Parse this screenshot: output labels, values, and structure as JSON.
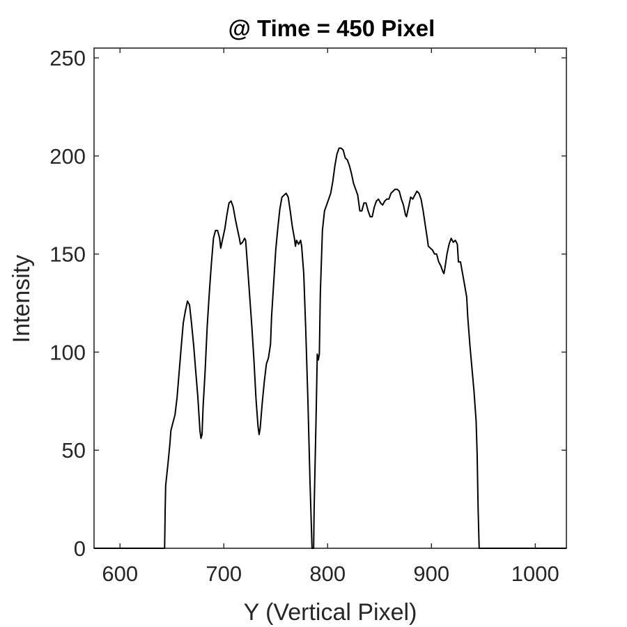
{
  "chart_data": {
    "type": "line",
    "title": "@ Time = 450 Pixel",
    "xlabel": "Y (Vertical Pixel)",
    "ylabel": "Intensity",
    "xlim": [
      575,
      1030
    ],
    "ylim": [
      0,
      255
    ],
    "xticks": [
      600,
      700,
      800,
      900,
      1000
    ],
    "yticks": [
      0,
      50,
      100,
      150,
      200,
      250
    ],
    "grid": false,
    "line_color": "#000000",
    "series": [
      {
        "points": [
          [
            575,
            0
          ],
          [
            643,
            0
          ],
          [
            643.5,
            20
          ],
          [
            644,
            32
          ],
          [
            646,
            42
          ],
          [
            648,
            53
          ],
          [
            649,
            60
          ],
          [
            651,
            64
          ],
          [
            653,
            68
          ],
          [
            655,
            77
          ],
          [
            657,
            90
          ],
          [
            659,
            103
          ],
          [
            661,
            115
          ],
          [
            663,
            121
          ],
          [
            665,
            126
          ],
          [
            667,
            124
          ],
          [
            669,
            114
          ],
          [
            671,
            103
          ],
          [
            673,
            90
          ],
          [
            675,
            77
          ],
          [
            677,
            60
          ],
          [
            678,
            56
          ],
          [
            679,
            58
          ],
          [
            680,
            72
          ],
          [
            682,
            90
          ],
          [
            684,
            113
          ],
          [
            686,
            130
          ],
          [
            688,
            145
          ],
          [
            690,
            158
          ],
          [
            692,
            162
          ],
          [
            694,
            162
          ],
          [
            696,
            158
          ],
          [
            697,
            153
          ],
          [
            699,
            158
          ],
          [
            701,
            163
          ],
          [
            703,
            170
          ],
          [
            705,
            176
          ],
          [
            707,
            177
          ],
          [
            709,
            174
          ],
          [
            711,
            168
          ],
          [
            713,
            163
          ],
          [
            715,
            158
          ],
          [
            716,
            155
          ],
          [
            718,
            156
          ],
          [
            720,
            158
          ],
          [
            721,
            157
          ],
          [
            723,
            143
          ],
          [
            725,
            128
          ],
          [
            727,
            113
          ],
          [
            729,
            96
          ],
          [
            731,
            76
          ],
          [
            733,
            62
          ],
          [
            734,
            58
          ],
          [
            735,
            61
          ],
          [
            737,
            74
          ],
          [
            739,
            85
          ],
          [
            741,
            94
          ],
          [
            743,
            97
          ],
          [
            745,
            104
          ],
          [
            746,
            118
          ],
          [
            748,
            135
          ],
          [
            750,
            152
          ],
          [
            752,
            163
          ],
          [
            754,
            173
          ],
          [
            756,
            179
          ],
          [
            758,
            180
          ],
          [
            760,
            181
          ],
          [
            762,
            179
          ],
          [
            764,
            172
          ],
          [
            766,
            164
          ],
          [
            768,
            158
          ],
          [
            769,
            154
          ],
          [
            770,
            157
          ],
          [
            772,
            155
          ],
          [
            774,
            157
          ],
          [
            775,
            154
          ],
          [
            777,
            140
          ],
          [
            779,
            110
          ],
          [
            781,
            75
          ],
          [
            783,
            35
          ],
          [
            785,
            0
          ],
          [
            786.5,
            0
          ],
          [
            787,
            20
          ],
          [
            789,
            70
          ],
          [
            790,
            99
          ],
          [
            791,
            96
          ],
          [
            792,
            99
          ],
          [
            793,
            130
          ],
          [
            795,
            162
          ],
          [
            797,
            172
          ],
          [
            799,
            175
          ],
          [
            801,
            178
          ],
          [
            803,
            181
          ],
          [
            805,
            187
          ],
          [
            807,
            195
          ],
          [
            809,
            201
          ],
          [
            811,
            204
          ],
          [
            813,
            204
          ],
          [
            815,
            203
          ],
          [
            817,
            199
          ],
          [
            819,
            198
          ],
          [
            821,
            195
          ],
          [
            823,
            191
          ],
          [
            825,
            186
          ],
          [
            827,
            183
          ],
          [
            829,
            180
          ],
          [
            831,
            172
          ],
          [
            833,
            172
          ],
          [
            835,
            176
          ],
          [
            837,
            176
          ],
          [
            839,
            172
          ],
          [
            841,
            169
          ],
          [
            843,
            169
          ],
          [
            845,
            174
          ],
          [
            847,
            177
          ],
          [
            849,
            178
          ],
          [
            851,
            176
          ],
          [
            853,
            175
          ],
          [
            855,
            177
          ],
          [
            857,
            178
          ],
          [
            859,
            178
          ],
          [
            861,
            181
          ],
          [
            863,
            182
          ],
          [
            865,
            183
          ],
          [
            867,
            183
          ],
          [
            869,
            182
          ],
          [
            871,
            178
          ],
          [
            873,
            175
          ],
          [
            875,
            170
          ],
          [
            876,
            169
          ],
          [
            878,
            174
          ],
          [
            880,
            179
          ],
          [
            882,
            178
          ],
          [
            884,
            180
          ],
          [
            886,
            182
          ],
          [
            888,
            181
          ],
          [
            890,
            178
          ],
          [
            892,
            172
          ],
          [
            894,
            165
          ],
          [
            896,
            158
          ],
          [
            897,
            154
          ],
          [
            899,
            153
          ],
          [
            901,
            152
          ],
          [
            903,
            150
          ],
          [
            905,
            150
          ],
          [
            907,
            146
          ],
          [
            909,
            144
          ],
          [
            911,
            141
          ],
          [
            912,
            140
          ],
          [
            913,
            143
          ],
          [
            915,
            150
          ],
          [
            917,
            155
          ],
          [
            919,
            158
          ],
          [
            921,
            156
          ],
          [
            923,
            157
          ],
          [
            925,
            155
          ],
          [
            926,
            146
          ],
          [
            928,
            146
          ],
          [
            930,
            140
          ],
          [
            932,
            134
          ],
          [
            934,
            128
          ],
          [
            935,
            118
          ],
          [
            937,
            104
          ],
          [
            939,
            92
          ],
          [
            941,
            80
          ],
          [
            943,
            65
          ],
          [
            944,
            48
          ],
          [
            945,
            20
          ],
          [
            946,
            0
          ],
          [
            1030,
            0
          ]
        ]
      }
    ]
  }
}
